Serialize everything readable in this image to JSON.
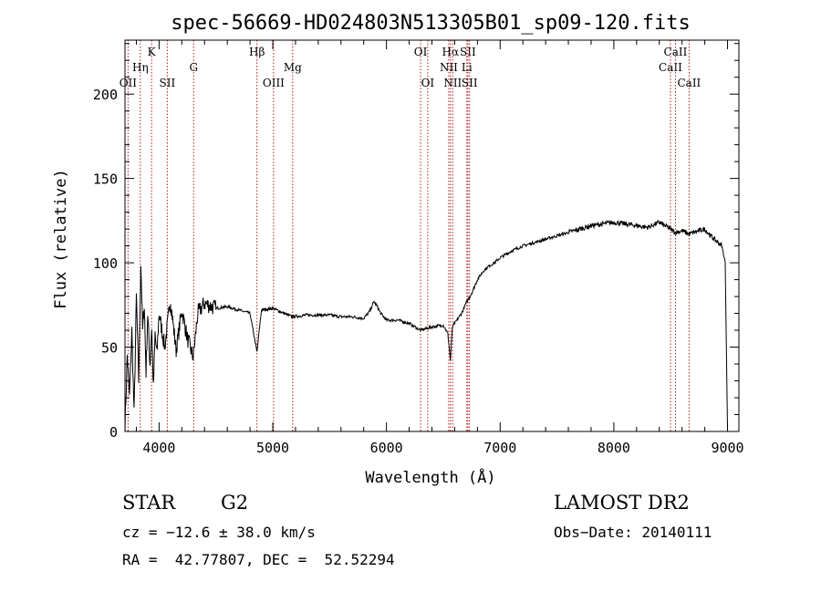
{
  "chart_data": {
    "type": "line",
    "title": "spec-56669-HD024803N513305B01_sp09-120.fits",
    "xlabel": "Wavelength (Å)",
    "ylabel": "Flux (relative)",
    "xlim": [
      3700,
      9100
    ],
    "ylim": [
      0,
      232
    ],
    "x_ticks": [
      4000,
      5000,
      6000,
      7000,
      8000,
      9000
    ],
    "y_ticks": [
      0,
      50,
      100,
      150,
      200
    ],
    "minor_ticks": true,
    "grid": false,
    "series": [
      {
        "color": "#000000",
        "x": [
          3700,
          3720,
          3740,
          3760,
          3780,
          3800,
          3820,
          3840,
          3855,
          3870,
          3885,
          3900,
          3920,
          3935,
          3950,
          3965,
          3980,
          4000,
          4050,
          4100,
          4150,
          4200,
          4250,
          4300,
          4340,
          4400,
          4500,
          4600,
          4700,
          4800,
          4861,
          4900,
          5000,
          5100,
          5173,
          5300,
          5400,
          5500,
          5600,
          5700,
          5800,
          5850,
          5890,
          5920,
          5950,
          6000,
          6100,
          6200,
          6300,
          6400,
          6500,
          6540,
          6563,
          6580,
          6620,
          6660,
          6700,
          6750,
          6800,
          6850,
          6900,
          6950,
          7000,
          7100,
          7200,
          7300,
          7400,
          7500,
          7600,
          7700,
          7800,
          7900,
          8000,
          8100,
          8200,
          8300,
          8400,
          8498,
          8542,
          8600,
          8662,
          8700,
          8750,
          8800,
          8850,
          8900,
          8950,
          8980,
          9000
        ],
        "y": [
          2,
          45,
          20,
          60,
          10,
          80,
          30,
          100,
          60,
          75,
          35,
          70,
          40,
          62,
          25,
          58,
          45,
          70,
          50,
          78,
          48,
          72,
          55,
          44,
          70,
          76,
          73,
          74,
          72,
          70,
          47,
          72,
          73,
          70,
          68,
          69,
          69,
          69,
          68,
          68,
          67,
          71,
          77,
          74,
          70,
          66,
          66,
          64,
          60,
          62,
          63,
          58,
          42,
          62,
          66,
          70,
          76,
          82,
          90,
          95,
          98,
          100,
          103,
          107,
          110,
          112,
          114,
          116,
          118,
          120,
          122,
          123,
          124,
          123,
          122,
          121,
          124,
          120,
          118,
          119,
          117,
          118,
          119,
          120,
          116,
          113,
          110,
          100,
          2
        ]
      }
    ],
    "lines": [
      {
        "x": 3727,
        "label": "OII",
        "row": 2
      },
      {
        "x": 3835,
        "label": "Hη",
        "row": 1
      },
      {
        "x": 3934,
        "label": "K",
        "row": 0
      },
      {
        "x": 4072,
        "label": "SII",
        "row": 2
      },
      {
        "x": 4304,
        "label": "G",
        "row": 1
      },
      {
        "x": 4861,
        "label": "Hβ",
        "row": 0
      },
      {
        "x": 5007,
        "label": "OIII",
        "row": 2
      },
      {
        "x": 5175,
        "label": "Mg",
        "row": 1
      },
      {
        "x": 6300,
        "label": "OI",
        "row": 0
      },
      {
        "x": 6363,
        "label": "OI",
        "row": 2
      },
      {
        "x": 6548,
        "label": "NII",
        "row": 1
      },
      {
        "x": 6563,
        "label": "Hα",
        "row": 0
      },
      {
        "x": 6583,
        "label": "NII",
        "row": 2
      },
      {
        "x": 6707,
        "label": "Li",
        "row": 1
      },
      {
        "x": 6716,
        "label": "SII",
        "row": 0
      },
      {
        "x": 6731,
        "label": "SII",
        "row": 2
      },
      {
        "x": 8498,
        "label": "CaII",
        "row": 1
      },
      {
        "x": 8542,
        "label": "CaII",
        "row": 0
      },
      {
        "x": 8662,
        "label": "CaII",
        "row": 2
      }
    ]
  },
  "info": {
    "object_type": "STAR",
    "subclass": "G2",
    "survey": "LAMOST DR2",
    "redshift": "cz = −12.6 ± 38.0 km/s",
    "obs_date": "Obs−Date: 20140111",
    "coords": "RA =  42.77807, DEC =  52.52294"
  }
}
